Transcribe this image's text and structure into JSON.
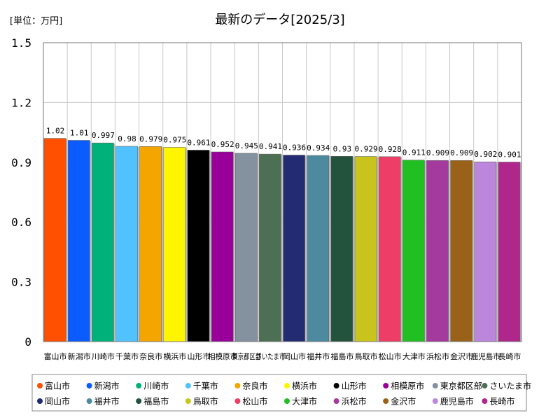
{
  "chart_data": {
    "type": "bar",
    "title": "最新のデータ[2025/3]",
    "unit_label": "[単位：万円]",
    "ylim": [
      0,
      1.5
    ],
    "yticks": [
      "0",
      "0.3",
      "0.6",
      "0.9",
      "1.2",
      "1.5"
    ],
    "ytick_values": [
      0,
      0.3,
      0.6,
      0.9,
      1.2,
      1.5
    ],
    "grid": true,
    "legend_position": "bottom",
    "categories": [
      "富山市",
      "新潟市",
      "川崎市",
      "千葉市",
      "奈良市",
      "横浜市",
      "山形市",
      "相模原市",
      "東京都区部",
      "さいたま市",
      "岡山市",
      "福井市",
      "福島市",
      "鳥取市",
      "松山市",
      "大津市",
      "浜松市",
      "金沢市",
      "鹿児島市",
      "長崎市"
    ],
    "values": [
      1.02,
      1.01,
      0.997,
      0.98,
      0.979,
      0.975,
      0.961,
      0.952,
      0.945,
      0.941,
      0.936,
      0.934,
      0.93,
      0.929,
      0.928,
      0.911,
      0.909,
      0.909,
      0.902,
      0.901
    ],
    "value_labels": [
      "1.02",
      "1.01",
      "0.997",
      "0.98",
      "0.979",
      "0.975",
      "0.961",
      "0.952",
      "0.945",
      "0.941",
      "0.936",
      "0.934",
      "0.93",
      "0.929",
      "0.928",
      "0.911",
      "0.909",
      "0.909",
      "0.902",
      "0.901"
    ],
    "tick_labels": [
      "富山市",
      "新潟市",
      "川崎市",
      "千葉市",
      "奈良市",
      "横浜市",
      "山形市",
      "相模原市",
      "東京都区部",
      "さいたま市",
      "岡山市",
      "福井市",
      "福島市",
      "鳥取市",
      "松山市",
      "大津市",
      "浜松市",
      "金沢市",
      "鹿児島市",
      "長崎市"
    ],
    "colors": [
      "#ff4f00",
      "#0a5cff",
      "#00b27a",
      "#52c2ff",
      "#f5a500",
      "#fff500",
      "#000000",
      "#990099",
      "#8492a0",
      "#4d7055",
      "#232b72",
      "#4d8aa0",
      "#23533c",
      "#c8c41c",
      "#ee3d66",
      "#22bf22",
      "#a53a9e",
      "#9a6218",
      "#bb86db",
      "#b0278c"
    ]
  }
}
